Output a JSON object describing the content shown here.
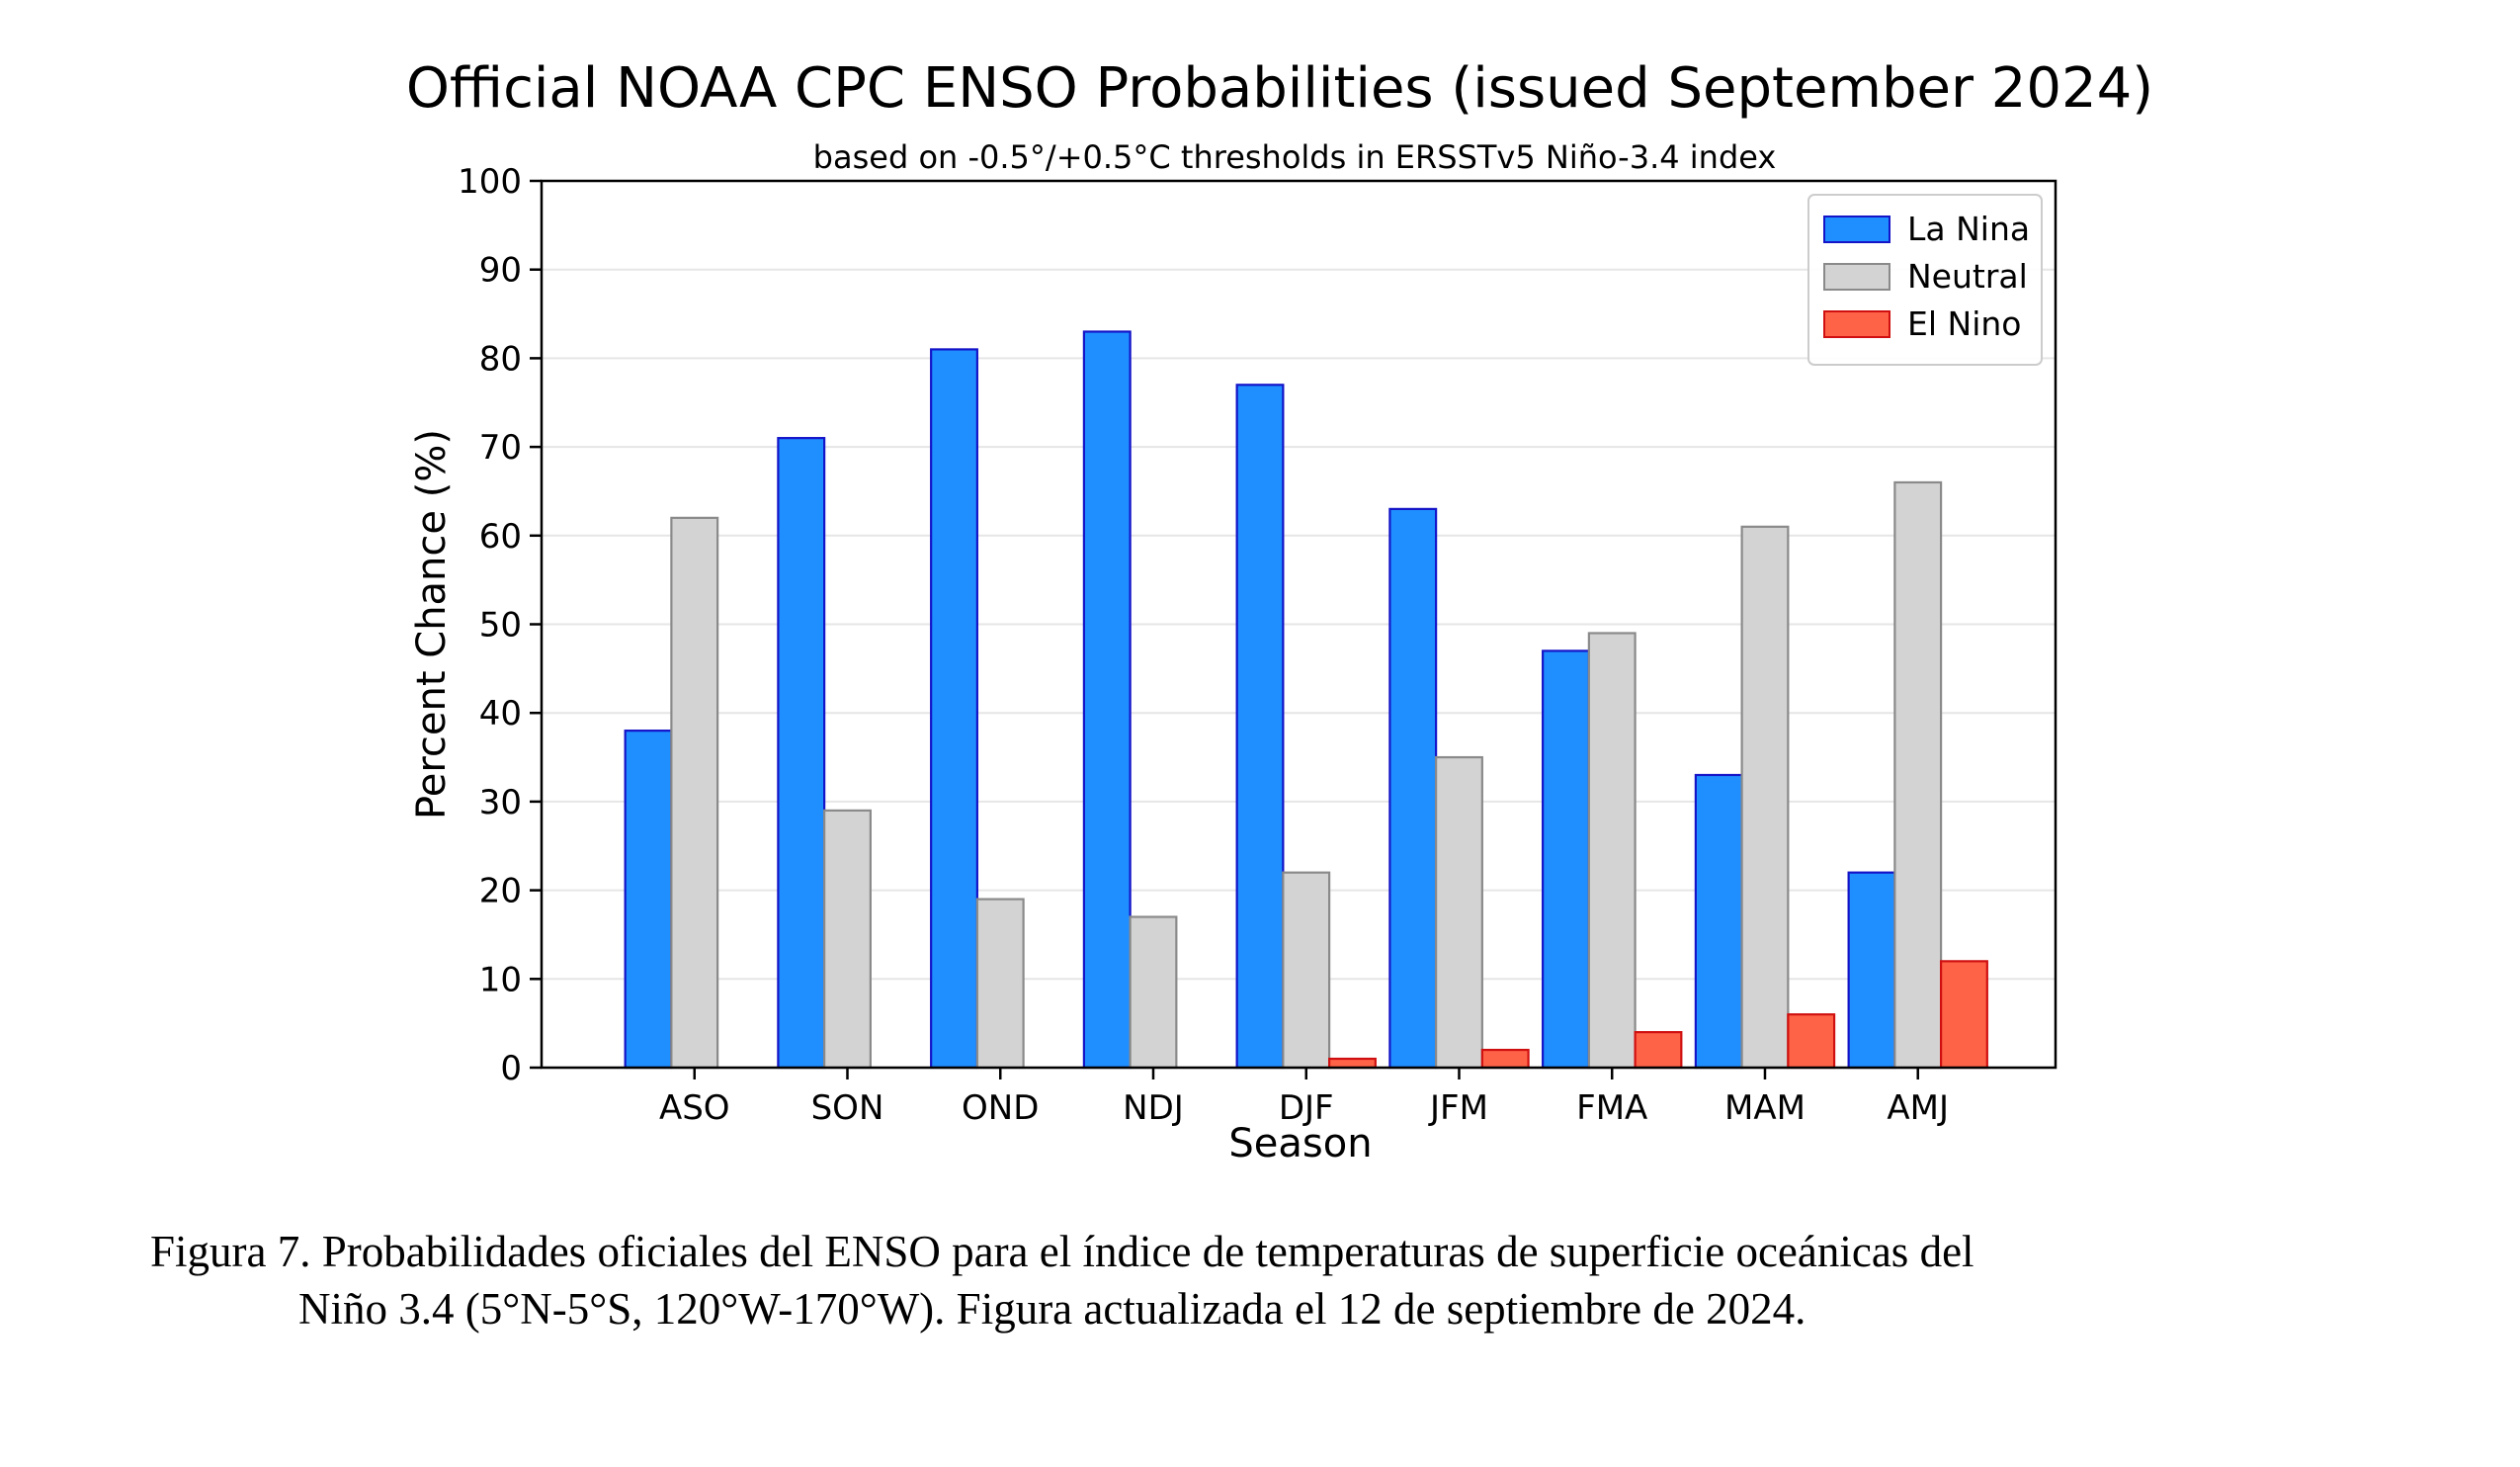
{
  "chart_data": {
    "type": "bar",
    "title": "Official NOAA CPC ENSO Probabilities (issued September 2024)",
    "subtitle": "based on -0.5°/+0.5°C thresholds in ERSSTv5 Niño-3.4 index",
    "xlabel": "Season",
    "ylabel": "Percent Chance (%)",
    "ylim": [
      0,
      100
    ],
    "yticks": [
      "0",
      "10",
      "20",
      "30",
      "40",
      "50",
      "60",
      "70",
      "80",
      "90",
      "100"
    ],
    "grid": true,
    "legend_position": "top-right",
    "categories": [
      "ASO",
      "SON",
      "OND",
      "NDJ",
      "DJF",
      "JFM",
      "FMA",
      "MAM",
      "AMJ"
    ],
    "series": [
      {
        "name": "La Nina",
        "color": "#1f8fff",
        "edge": "#1414c8",
        "values": [
          38,
          71,
          81,
          83,
          77,
          63,
          47,
          33,
          22
        ]
      },
      {
        "name": "Neutral",
        "color": "#d3d3d3",
        "edge": "#8a8a8a",
        "values": [
          62,
          29,
          19,
          17,
          22,
          35,
          49,
          61,
          66
        ]
      },
      {
        "name": "El Nino",
        "color": "#ff6347",
        "edge": "#d01010",
        "values": [
          0,
          0,
          0,
          0,
          1,
          2,
          4,
          6,
          12
        ]
      }
    ]
  },
  "caption": {
    "line1": "Figura 7. Probabilidades oficiales del ENSO para el índice de temperaturas de superficie oceánicas del",
    "line2": "Niño 3.4 (5°N-5°S, 120°W-170°W). Figura actualizada el 12 de septiembre de 2024."
  }
}
